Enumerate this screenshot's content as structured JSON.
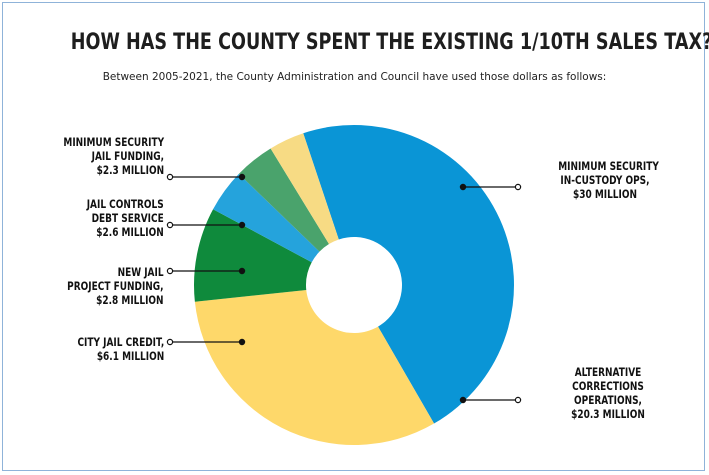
{
  "chart_data": {
    "type": "pie",
    "title": "HOW HAS THE COUNTY SPENT THE EXISTING 1/10TH SALES TAX?",
    "subtitle": "Between 2005-2021, the County Administration and Council have used those dollars as follows:",
    "unit": "$ million",
    "slices": [
      {
        "label_lines": [
          "MINIMUM SECURITY",
          "IN-CUSTODY OPS,",
          "$30 MILLION"
        ],
        "value": 30,
        "color": "#0a95d6"
      },
      {
        "label_lines": [
          "ALTERNATIVE",
          "CORRECTIONS",
          "OPERATIONS,",
          "$20.3 MILLION"
        ],
        "value": 20.3,
        "color": "#fed86a"
      },
      {
        "label_lines": [
          "CITY JAIL CREDIT,",
          "$6.1 MILLION"
        ],
        "value": 6.1,
        "color": "#0f8a3c"
      },
      {
        "label_lines": [
          "NEW JAIL",
          "PROJECT FUNDING,",
          "$2.8 MILLION"
        ],
        "value": 2.8,
        "color": "#25a3dc"
      },
      {
        "label_lines": [
          "JAIL CONTROLS",
          "DEBT SERVICE",
          "$2.6 MILLION"
        ],
        "value": 2.6,
        "color": "#4aa36c"
      },
      {
        "label_lines": [
          "MINIMUM SECURITY",
          "JAIL FUNDING,",
          "$2.3 MILLION"
        ],
        "value": 2.3,
        "color": "#f7db84"
      }
    ]
  }
}
